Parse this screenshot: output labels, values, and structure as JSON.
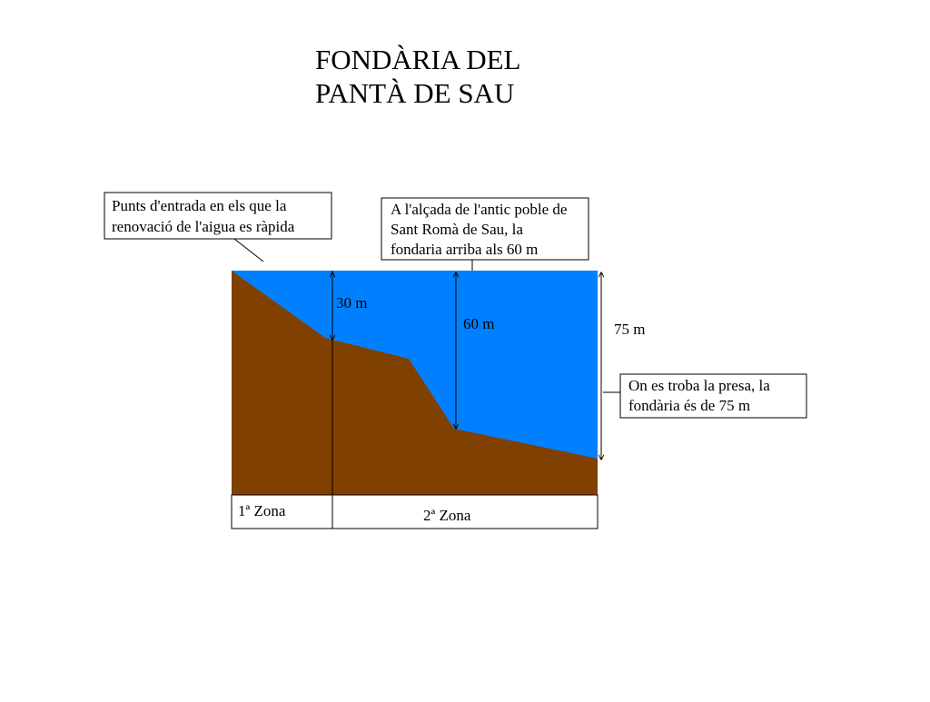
{
  "title": [
    "FONDÀRIA DEL",
    "PANTÀ DE SAU"
  ],
  "callouts": [
    {
      "lines": [
        "Punts d'entrada en els que la",
        "renovació de l'aigua es ràpida"
      ]
    },
    {
      "lines": [
        "A l'alçada de l'antic poble de",
        "Sant Romà de Sau, la",
        "fondaria arriba als 60 m"
      ]
    },
    {
      "lines": [
        "On es troba la presa, la",
        "fondària és de 75 m"
      ]
    }
  ],
  "depths": [
    "30 m",
    "60 m",
    "75 m"
  ],
  "zones": [
    "1ª Zona",
    "2ª Zona"
  ]
}
